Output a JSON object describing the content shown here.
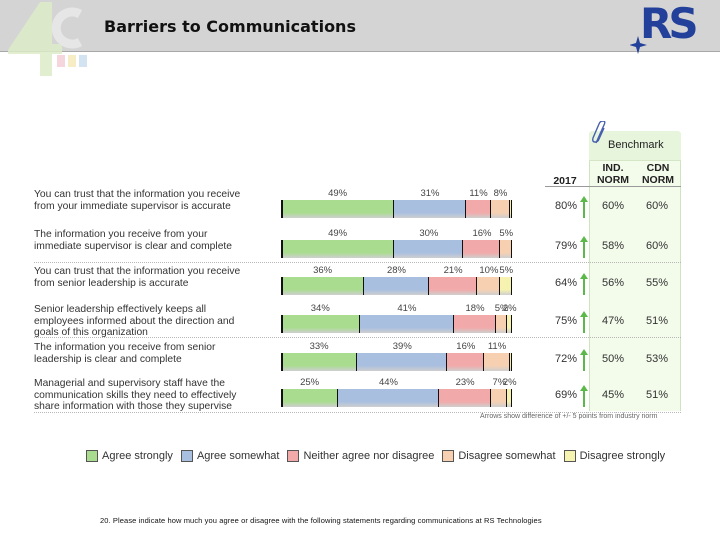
{
  "header": {
    "title": "Barriers to Communications",
    "left_logo": "4C",
    "right_logo": "RS"
  },
  "benchmark": {
    "label": "Benchmark",
    "col_2017": "2017",
    "col_ind_line1": "IND.",
    "col_ind_line2": "NORM",
    "col_cdn_line1": "CDN",
    "col_cdn_line2": "NORM"
  },
  "colors": {
    "agree_strongly": "#a9dc8f",
    "agree_somewhat": "#a9bfe0",
    "neither": "#f2a9a9",
    "disagree_somewhat": "#f7d0b2",
    "disagree_strongly": "#f6f2b0",
    "arrow": "#5cb84a"
  },
  "rows": [
    {
      "question": "You can trust that the information you receive from your immediate supervisor is accurate",
      "labels": [
        "49%",
        "31%",
        "11%",
        "8%",
        ""
      ],
      "y2017": "80%",
      "ind": "60%",
      "cdn": "60%"
    },
    {
      "question": "The information you receive from your immediate supervisor is clear and complete",
      "labels": [
        "49%",
        "30%",
        "16%",
        "5%",
        ""
      ],
      "y2017": "79%",
      "ind": "58%",
      "cdn": "60%"
    },
    {
      "question": "You can trust that the information you receive from senior leadership is accurate",
      "labels": [
        "36%",
        "28%",
        "21%",
        "10%",
        "5%"
      ],
      "y2017": "64%",
      "ind": "56%",
      "cdn": "55%"
    },
    {
      "question": "Senior leadership effectively keeps all employees informed about the direction and goals of this organization",
      "labels": [
        "34%",
        "41%",
        "18%",
        "5%",
        "2%"
      ],
      "y2017": "75%",
      "ind": "47%",
      "cdn": "51%"
    },
    {
      "question": "The information you receive from senior leadership is clear and complete",
      "labels": [
        "33%",
        "39%",
        "16%",
        "11%",
        ""
      ],
      "y2017": "72%",
      "ind": "50%",
      "cdn": "53%"
    },
    {
      "question": "Managerial and supervisory staff have the communication skills they need to effectively share information with those they supervise",
      "labels": [
        "25%",
        "44%",
        "23%",
        "7%",
        "2%"
      ],
      "y2017": "69%",
      "ind": "45%",
      "cdn": "51%"
    }
  ],
  "footnote": "Arrows show difference of +/- 5 points from industry norm",
  "legend": [
    "Agree strongly",
    "Agree somewhat",
    "Neither agree nor disagree",
    "Disagree somewhat",
    "Disagree strongly"
  ],
  "question_text": "20. Please indicate how much you agree or disagree with the following statements regarding communications at RS Technologies",
  "chart_data": {
    "type": "bar",
    "stacked": true,
    "orientation": "horizontal",
    "title": "Barriers to Communications",
    "subtitle": "20. Please indicate how much you agree or disagree with the following statements regarding communications at RS Technologies",
    "categories": [
      "You can trust that the information you receive from your immediate supervisor is accurate",
      "The information you receive from your immediate supervisor is clear and complete",
      "You can trust that the information you receive from senior leadership is accurate",
      "Senior leadership effectively keeps all employees informed about the direction and goals of this organization",
      "The information you receive from senior leadership is clear and complete",
      "Managerial and supervisory staff have the communication skills they need to effectively share information with those they supervise"
    ],
    "series": [
      {
        "name": "Agree strongly",
        "values": [
          49,
          49,
          36,
          34,
          33,
          25
        ]
      },
      {
        "name": "Agree somewhat",
        "values": [
          31,
          30,
          28,
          41,
          39,
          44
        ]
      },
      {
        "name": "Neither agree nor disagree",
        "values": [
          11,
          16,
          21,
          18,
          16,
          23
        ]
      },
      {
        "name": "Disagree somewhat",
        "values": [
          8,
          5,
          10,
          5,
          11,
          7
        ]
      },
      {
        "name": "Disagree strongly",
        "values": [
          1,
          0,
          5,
          2,
          1,
          2
        ]
      }
    ],
    "table": {
      "columns": [
        "2017",
        "IND. NORM",
        "CDN NORM"
      ],
      "rows": [
        [
          "80%",
          "60%",
          "60%"
        ],
        [
          "79%",
          "58%",
          "60%"
        ],
        [
          "64%",
          "56%",
          "55%"
        ],
        [
          "75%",
          "47%",
          "51%"
        ],
        [
          "72%",
          "50%",
          "53%"
        ],
        [
          "69%",
          "45%",
          "51%"
        ]
      ]
    },
    "legend_position": "bottom",
    "xlabel": "",
    "ylabel": "",
    "xlim": [
      0,
      100
    ],
    "grid": false,
    "annotations": [
      "Benchmark",
      "Arrows show difference of +/- 5 points from industry norm"
    ]
  }
}
